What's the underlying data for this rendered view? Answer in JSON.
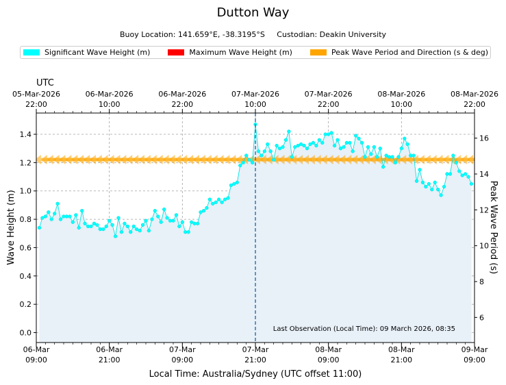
{
  "chart_data": {
    "type": "line",
    "title": "Dutton Way",
    "subtitle": {
      "location": "Buoy Location: 141.659°E, -38.3195°S",
      "custodian": "Custodian: Deakin University"
    },
    "legend": [
      {
        "label": "Significant Wave Height (m)",
        "color": "#00ffff"
      },
      {
        "label": "Maximum Wave Height (m)",
        "color": "#ff0000"
      },
      {
        "label": "Peak Wave Period and Direction (s & deg)",
        "color": "#ffa500"
      }
    ],
    "xlabel": "Local Time: Australia/Sydney (UTC offset 11:00)",
    "ylabel": "Wave Height (m)",
    "y2label": "Peak Wave Period (s)",
    "top_axis_label": "UTC",
    "x_range_hours": [
      0,
      72
    ],
    "ylim": [
      -0.07,
      1.55
    ],
    "y2lim": [
      4.6,
      17.4
    ],
    "yticks": [
      "0.0",
      "0.2",
      "0.4",
      "0.6",
      "0.8",
      "1.0",
      "1.2",
      "1.4"
    ],
    "y2ticks": [
      "6",
      "8",
      "10",
      "12",
      "14",
      "16"
    ],
    "bottom_ticks": [
      {
        "h": 0,
        "date": "06-Mar",
        "time": "09:00"
      },
      {
        "h": 12,
        "date": "06-Mar",
        "time": "21:00"
      },
      {
        "h": 24,
        "date": "07-Mar",
        "time": "09:00"
      },
      {
        "h": 36,
        "date": "07-Mar",
        "time": "21:00"
      },
      {
        "h": 48,
        "date": "08-Mar",
        "time": "09:00"
      },
      {
        "h": 60,
        "date": "08-Mar",
        "time": "21:00"
      },
      {
        "h": 72,
        "date": "09-Mar",
        "time": "09:00"
      }
    ],
    "top_ticks": [
      {
        "h": 0,
        "date": "05-Mar-2026",
        "time": "22:00"
      },
      {
        "h": 12,
        "date": "06-Mar-2026",
        "time": "10:00"
      },
      {
        "h": 24,
        "date": "06-Mar-2026",
        "time": "22:00"
      },
      {
        "h": 36,
        "date": "07-Mar-2026",
        "time": "10:00"
      },
      {
        "h": 48,
        "date": "07-Mar-2026",
        "time": "22:00"
      },
      {
        "h": 60,
        "date": "08-Mar-2026",
        "time": "10:00"
      },
      {
        "h": 72,
        "date": "08-Mar-2026",
        "time": "22:00"
      }
    ],
    "last_observation_hour": 36,
    "last_observation_label": "Last Observation (Local Time): 09 March 2026, 08:35",
    "series": [
      {
        "name": "Significant Wave Height (m)",
        "start_hour": 0.5,
        "step_hours": 0.5,
        "values": [
          0.74,
          0.81,
          0.82,
          0.85,
          0.8,
          0.84,
          0.91,
          0.8,
          0.82,
          0.82,
          0.82,
          0.78,
          0.83,
          0.74,
          0.86,
          0.77,
          0.75,
          0.75,
          0.77,
          0.76,
          0.73,
          0.73,
          0.75,
          0.79,
          0.76,
          0.68,
          0.81,
          0.71,
          0.77,
          0.75,
          0.71,
          0.75,
          0.73,
          0.72,
          0.76,
          0.79,
          0.72,
          0.8,
          0.86,
          0.82,
          0.78,
          0.87,
          0.81,
          0.79,
          0.79,
          0.83,
          0.75,
          0.78,
          0.71,
          0.71,
          0.78,
          0.77,
          0.77,
          0.85,
          0.86,
          0.88,
          0.94,
          0.91,
          0.92,
          0.94,
          0.92,
          0.94,
          0.95,
          1.04,
          1.05,
          1.06,
          1.18,
          1.2,
          1.25,
          1.22,
          1.2,
          1.47,
          1.28,
          1.25,
          1.28,
          1.33,
          1.28,
          1.22,
          1.32,
          1.3,
          1.31,
          1.36,
          1.42,
          1.24,
          1.31,
          1.32,
          1.33,
          1.32,
          1.3,
          1.33,
          1.34,
          1.32,
          1.36,
          1.34,
          1.4,
          1.4,
          1.41,
          1.32,
          1.36,
          1.3,
          1.31,
          1.34,
          1.34,
          1.28,
          1.39,
          1.37,
          1.34,
          1.24,
          1.31,
          1.26,
          1.31,
          1.24,
          1.3,
          1.17,
          1.25,
          1.24,
          1.24,
          1.2,
          1.24,
          1.3,
          1.37,
          1.33,
          1.25,
          1.25,
          1.07,
          1.15,
          1.06,
          1.03,
          1.05,
          1.01,
          1.06,
          1.01,
          0.97,
          1.03,
          1.12,
          1.12,
          1.25,
          1.2,
          1.14,
          1.11,
          1.12,
          1.1,
          1.05
        ]
      },
      {
        "name": "Peak Wave Period and Direction (s & deg)",
        "arrows": [
          {
            "h": 1,
            "p": 14.8,
            "dir": 270
          },
          {
            "h": 2,
            "p": 14.8,
            "dir": 270
          },
          {
            "h": 3,
            "p": 14.8,
            "dir": 270
          },
          {
            "h": 4,
            "p": 14.8,
            "dir": 270
          },
          {
            "h": 5,
            "p": 14.8,
            "dir": 270
          },
          {
            "h": 6,
            "p": 14.8,
            "dir": 270
          },
          {
            "h": 7,
            "p": 14.8,
            "dir": 270
          },
          {
            "h": 8,
            "p": 14.8,
            "dir": 270
          },
          {
            "h": 9,
            "p": 14.8,
            "dir": 270
          },
          {
            "h": 10,
            "p": 14.8,
            "dir": 270
          },
          {
            "h": 11,
            "p": 14.8,
            "dir": 270
          },
          {
            "h": 12,
            "p": 14.8,
            "dir": 270
          },
          {
            "h": 13,
            "p": 14.8,
            "dir": 270
          },
          {
            "h": 14,
            "p": 14.8,
            "dir": 270
          },
          {
            "h": 15,
            "p": 14.8,
            "dir": 270
          },
          {
            "h": 16,
            "p": 14.8,
            "dir": 270
          },
          {
            "h": 17,
            "p": 14.8,
            "dir": 270
          },
          {
            "h": 18,
            "p": 14.8,
            "dir": 270
          },
          {
            "h": 19,
            "p": 14.8,
            "dir": 270
          },
          {
            "h": 20,
            "p": 14.8,
            "dir": 270
          },
          {
            "h": 21,
            "p": 14.8,
            "dir": 270
          },
          {
            "h": 22,
            "p": 14.8,
            "dir": 270
          },
          {
            "h": 23,
            "p": 14.8,
            "dir": 270
          },
          {
            "h": 24,
            "p": 14.8,
            "dir": 270
          },
          {
            "h": 25,
            "p": 14.8,
            "dir": 270
          },
          {
            "h": 26,
            "p": 14.8,
            "dir": 270
          },
          {
            "h": 27,
            "p": 14.8,
            "dir": 270
          },
          {
            "h": 28,
            "p": 14.8,
            "dir": 270
          },
          {
            "h": 29,
            "p": 14.8,
            "dir": 270
          },
          {
            "h": 30,
            "p": 14.8,
            "dir": 270
          },
          {
            "h": 31,
            "p": 14.8,
            "dir": 270
          },
          {
            "h": 32,
            "p": 14.8,
            "dir": 270
          },
          {
            "h": 33,
            "p": 14.8,
            "dir": 270
          },
          {
            "h": 34,
            "p": 14.8,
            "dir": 270
          },
          {
            "h": 35,
            "p": 14.8,
            "dir": 270
          },
          {
            "h": 36,
            "p": 14.8,
            "dir": 270
          },
          {
            "h": 37,
            "p": 14.8,
            "dir": 270
          },
          {
            "h": 38,
            "p": 14.8,
            "dir": 270
          },
          {
            "h": 39,
            "p": 14.8,
            "dir": 270
          },
          {
            "h": 40,
            "p": 14.8,
            "dir": 270
          },
          {
            "h": 41,
            "p": 14.8,
            "dir": 270
          },
          {
            "h": 42,
            "p": 14.8,
            "dir": 270
          },
          {
            "h": 43,
            "p": 14.8,
            "dir": 270
          },
          {
            "h": 44,
            "p": 14.8,
            "dir": 270
          },
          {
            "h": 45,
            "p": 14.8,
            "dir": 270
          },
          {
            "h": 46,
            "p": 14.8,
            "dir": 270
          },
          {
            "h": 47,
            "p": 14.8,
            "dir": 270
          },
          {
            "h": 48,
            "p": 14.8,
            "dir": 270
          },
          {
            "h": 49,
            "p": 14.8,
            "dir": 270
          },
          {
            "h": 50,
            "p": 14.8,
            "dir": 270
          },
          {
            "h": 51,
            "p": 14.8,
            "dir": 270
          },
          {
            "h": 52,
            "p": 14.8,
            "dir": 270
          },
          {
            "h": 53,
            "p": 14.8,
            "dir": 270
          },
          {
            "h": 54,
            "p": 14.8,
            "dir": 270
          },
          {
            "h": 55,
            "p": 14.8,
            "dir": 270
          },
          {
            "h": 56,
            "p": 14.8,
            "dir": 270
          },
          {
            "h": 57,
            "p": 14.8,
            "dir": 270
          },
          {
            "h": 58,
            "p": 14.8,
            "dir": 270
          },
          {
            "h": 59,
            "p": 14.8,
            "dir": 270
          },
          {
            "h": 60,
            "p": 14.8,
            "dir": 270
          },
          {
            "h": 61,
            "p": 14.8,
            "dir": 270
          },
          {
            "h": 62,
            "p": 14.8,
            "dir": 270
          },
          {
            "h": 63,
            "p": 14.8,
            "dir": 270
          },
          {
            "h": 64,
            "p": 14.8,
            "dir": 270
          },
          {
            "h": 65,
            "p": 14.8,
            "dir": 270
          },
          {
            "h": 66,
            "p": 14.8,
            "dir": 270
          },
          {
            "h": 67,
            "p": 14.8,
            "dir": 270
          },
          {
            "h": 68,
            "p": 14.8,
            "dir": 270
          },
          {
            "h": 69,
            "p": 14.8,
            "dir": 270
          },
          {
            "h": 70,
            "p": 14.8,
            "dir": 270
          },
          {
            "h": 71,
            "p": 14.8,
            "dir": 270
          },
          {
            "h": 72,
            "p": 14.8,
            "dir": 270
          }
        ]
      }
    ]
  }
}
